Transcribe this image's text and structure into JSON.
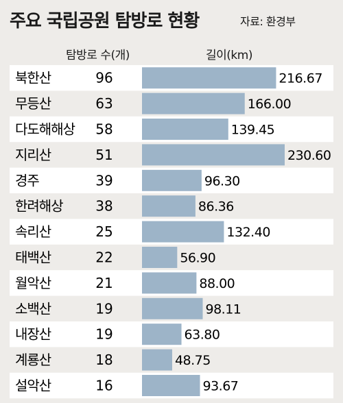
{
  "title": "주요 국립공원 탐방로 현황",
  "source": "자료: 환경부",
  "columns": {
    "count": "탐방로 수(개)",
    "length": "길이(km)"
  },
  "colors": {
    "bar": "#9db4c8",
    "background": "#eeece9",
    "row_band": "#ffffff"
  },
  "chart_data": {
    "type": "bar",
    "orientation": "horizontal",
    "categories": [
      "북한산",
      "무등산",
      "다도해해상",
      "지리산",
      "경주",
      "한려해상",
      "속리산",
      "태백산",
      "월악산",
      "소백산",
      "내장산",
      "계룡산",
      "설악산"
    ],
    "counts": [
      "96",
      "63",
      "58",
      "51",
      "39",
      "38",
      "25",
      "22",
      "21",
      "19",
      "19",
      "18",
      "16"
    ],
    "series": [
      {
        "values": [
          216.67,
          166.0,
          139.45,
          230.6,
          96.3,
          86.36,
          132.4,
          56.9,
          88.0,
          98.11,
          63.8,
          48.75,
          93.67
        ]
      }
    ],
    "value_labels": [
      "216.67",
      "166.00",
      "139.45",
      "230.60",
      "96.30",
      "86.36",
      "132.40",
      "56.90",
      "88.00",
      "98.11",
      "63.80",
      "48.75",
      "93.67"
    ],
    "xlim": [
      0,
      230.6
    ]
  }
}
